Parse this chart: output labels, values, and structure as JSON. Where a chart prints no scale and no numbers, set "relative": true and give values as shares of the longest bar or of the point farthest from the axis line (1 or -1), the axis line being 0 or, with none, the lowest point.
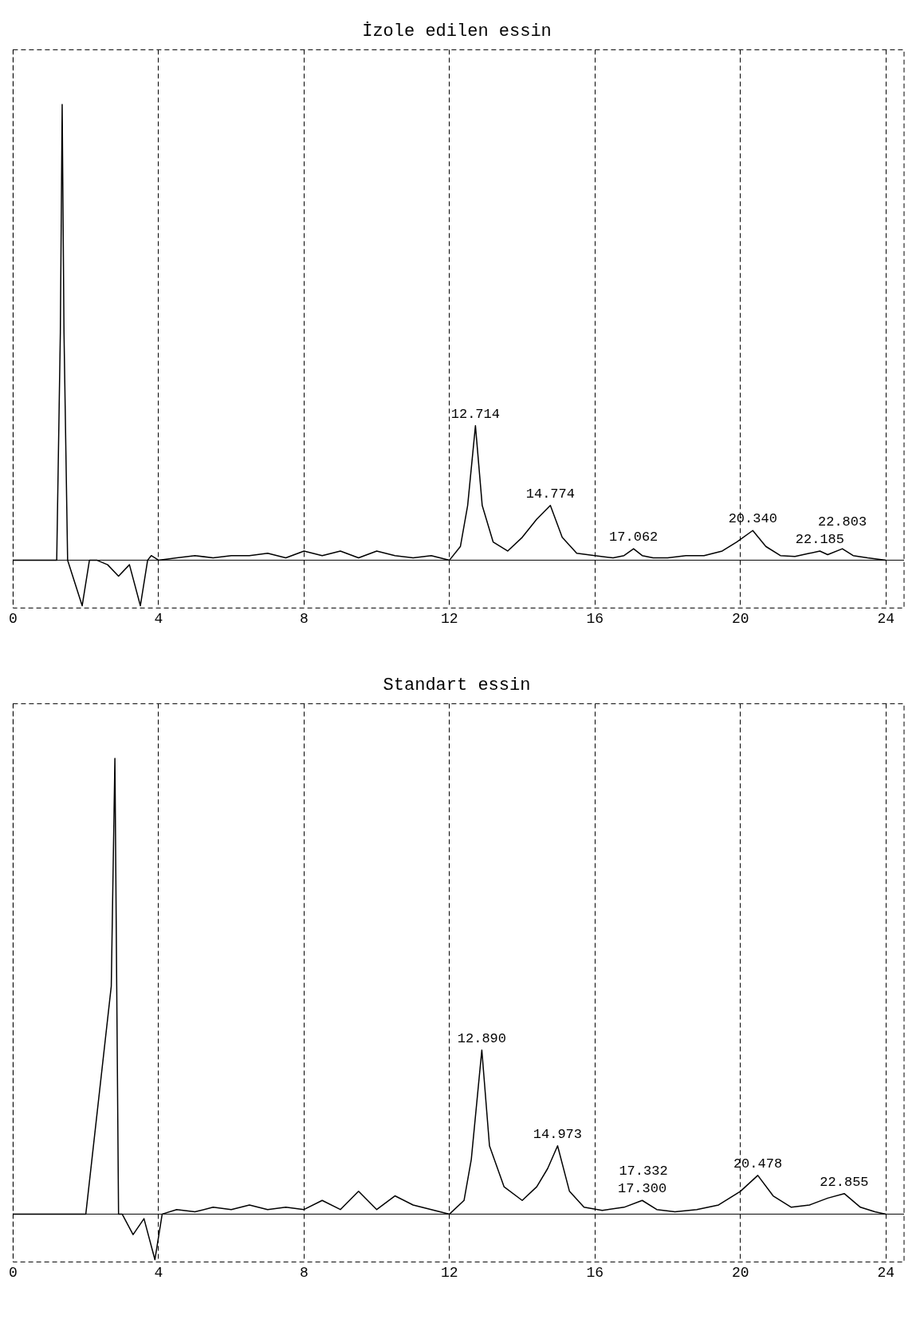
{
  "chart_data": [
    {
      "type": "line",
      "title": "İzole edilen essin",
      "relative": true,
      "grid": "x",
      "legend": false,
      "marker": "none",
      "line_style": "solid",
      "color": "#000000",
      "xlim": [
        0,
        24.5
      ],
      "xticks": [
        0,
        4,
        8,
        12,
        16,
        20,
        24
      ],
      "x": [
        0,
        0.8,
        1.2,
        1.3,
        1.35,
        1.4,
        1.5,
        1.9,
        2.1,
        2.3,
        2.6,
        2.9,
        3.2,
        3.5,
        3.7,
        3.8,
        4.0,
        4.5,
        5,
        5.5,
        6,
        6.5,
        7,
        7.5,
        8,
        8.5,
        9,
        9.5,
        10,
        10.5,
        11,
        11.5,
        12,
        12.3,
        12.5,
        12.714,
        12.9,
        13.2,
        13.6,
        14.0,
        14.4,
        14.774,
        15.1,
        15.5,
        16,
        16.5,
        16.8,
        17.062,
        17.3,
        17.6,
        18,
        18.5,
        19,
        19.5,
        19.9,
        20.34,
        20.7,
        21.1,
        21.5,
        21.9,
        22.185,
        22.4,
        22.803,
        23.1,
        23.5,
        24
      ],
      "values": [
        0,
        0,
        0,
        0.5,
        1,
        0.5,
        0,
        -0.1,
        0,
        0,
        -0.01,
        -0.035,
        -0.01,
        -0.1,
        0,
        0.01,
        0,
        0.005,
        0.01,
        0.005,
        0.01,
        0.01,
        0.015,
        0.005,
        0.02,
        0.01,
        0.02,
        0.005,
        0.02,
        0.01,
        0.005,
        0.01,
        0,
        0.03,
        0.12,
        0.295,
        0.12,
        0.04,
        0.02,
        0.05,
        0.09,
        0.12,
        0.05,
        0.015,
        0.01,
        0.005,
        0.01,
        0.025,
        0.01,
        0.005,
        0.005,
        0.01,
        0.01,
        0.02,
        0.04,
        0.065,
        0.03,
        0.01,
        0.008,
        0.015,
        0.02,
        0.012,
        0.025,
        0.01,
        0.005,
        0
      ],
      "annotations": [
        {
          "text": "12.714",
          "x": 12.714,
          "y": 0.295
        },
        {
          "text": "14.774",
          "x": 14.774,
          "y": 0.12
        },
        {
          "text": "17.062",
          "x": 17.062,
          "y": 0.025
        },
        {
          "text": "20.340",
          "x": 20.34,
          "y": 0.065
        },
        {
          "text": "22.185",
          "x": 22.185,
          "y": 0.02
        },
        {
          "text": "22.803",
          "x": 22.803,
          "y": 0.025
        }
      ]
    },
    {
      "type": "line",
      "title": "Standart essin",
      "relative": true,
      "grid": "x",
      "legend": false,
      "marker": "none",
      "line_style": "solid",
      "color": "#000000",
      "xlim": [
        0,
        24.5
      ],
      "xticks": [
        0,
        4,
        8,
        12,
        16,
        20,
        24
      ],
      "x": [
        0,
        2.0,
        2.7,
        2.8,
        2.85,
        2.9,
        3.0,
        3.3,
        3.6,
        3.9,
        4.1,
        4.5,
        5,
        5.5,
        6,
        6.5,
        7,
        7.5,
        8,
        8.5,
        9,
        9.5,
        10,
        10.5,
        11,
        11.5,
        12,
        12.4,
        12.6,
        12.89,
        13.1,
        13.5,
        14.0,
        14.4,
        14.7,
        14.973,
        15.3,
        15.7,
        16.2,
        16.8,
        17.3,
        17.7,
        18.2,
        18.8,
        19.4,
        20.0,
        20.478,
        20.9,
        21.4,
        21.9,
        22.4,
        22.855,
        23.3,
        23.7,
        24
      ],
      "values": [
        0,
        0,
        0.5,
        1,
        0.5,
        0,
        0,
        -0.045,
        -0.01,
        -0.1,
        0,
        0.01,
        0.005,
        0.015,
        0.01,
        0.02,
        0.01,
        0.015,
        0.01,
        0.03,
        0.01,
        0.05,
        0.01,
        0.04,
        0.02,
        0.01,
        0,
        0.03,
        0.12,
        0.36,
        0.15,
        0.06,
        0.03,
        0.06,
        0.1,
        0.15,
        0.05,
        0.015,
        0.008,
        0.015,
        0.03,
        0.01,
        0.005,
        0.01,
        0.02,
        0.05,
        0.085,
        0.04,
        0.015,
        0.02,
        0.035,
        0.045,
        0.015,
        0.005,
        0
      ],
      "annotations": [
        {
          "text": "12.890",
          "x": 12.89,
          "y": 0.36
        },
        {
          "text": "14.973",
          "x": 14.973,
          "y": 0.15
        },
        {
          "text": "17.300",
          "x": 17.3,
          "y": 0.03
        },
        {
          "text": "17.332",
          "x": 17.332,
          "y": 0.03
        },
        {
          "text": "20.478",
          "x": 20.478,
          "y": 0.085
        },
        {
          "text": "22.855",
          "x": 22.855,
          "y": 0.045
        }
      ]
    }
  ]
}
